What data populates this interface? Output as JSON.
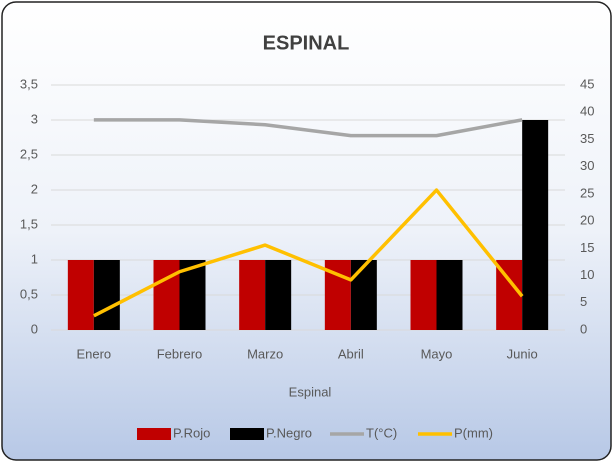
{
  "chart_data": {
    "type": "bar",
    "title": "ESPINAL",
    "x_label": "Espinal",
    "categories": [
      "Enero",
      "Febrero",
      "Marzo",
      "Abril",
      "Mayo",
      "Junio"
    ],
    "series": [
      {
        "name": "P.Rojo",
        "type": "bar",
        "color": "#c00000",
        "values": [
          1,
          1,
          1,
          1,
          1,
          1
        ]
      },
      {
        "name": "P.Negro",
        "type": "bar",
        "color": "#000000",
        "values": [
          1,
          1,
          1,
          1,
          1,
          3
        ]
      },
      {
        "name": "T(°C)",
        "type": "line",
        "axis": "y2",
        "color": "#a6a6a6",
        "values": [
          38.6,
          38.6,
          37.7,
          35.7,
          35.7,
          38.6
        ]
      },
      {
        "name": "P(mm)",
        "type": "line",
        "axis": "y2",
        "color": "#ffc000",
        "values": [
          2.6,
          10.7,
          15.6,
          9.2,
          25.7,
          6.2
        ]
      }
    ],
    "ylim": [
      0,
      3.5
    ],
    "yticks": [
      0,
      {
        "value": 0.5,
        "label": "0,5"
      },
      1,
      {
        "value": 1.5,
        "label": "1,5"
      },
      2,
      {
        "value": 2.5,
        "label": "2,5"
      },
      3,
      {
        "value": 3.5,
        "label": "3,5"
      }
    ],
    "y2lim": [
      0,
      45
    ],
    "y2ticks": [
      0,
      5,
      10,
      15,
      20,
      25,
      30,
      35,
      40,
      45
    ],
    "grid": true,
    "legend": "bottom"
  }
}
